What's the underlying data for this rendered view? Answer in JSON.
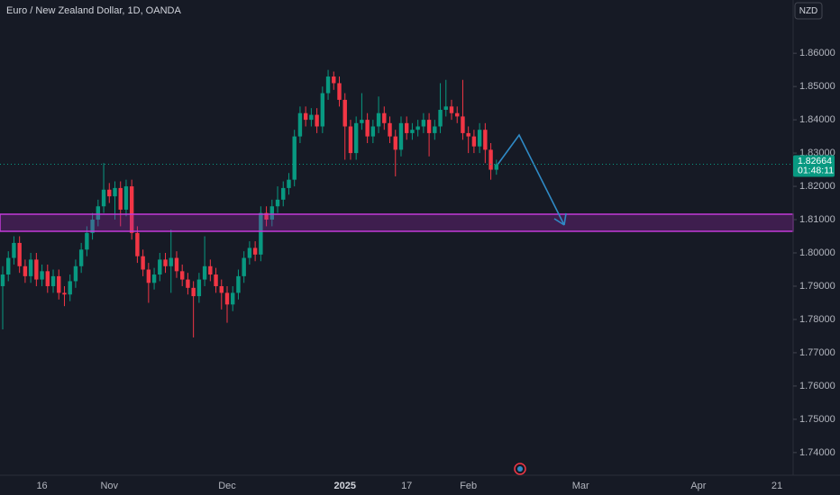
{
  "chart_data": {
    "type": "candlestick",
    "title": "Euro / New Zealand Dollar, 1D, OANDA",
    "currency": "NZD",
    "countdown": "01:48:11",
    "up_color": "#089981",
    "down_color": "#f23645",
    "grid": false,
    "ylim": [
      1.7332,
      1.876
    ],
    "yticks": [
      {
        "value": 1.74,
        "label": "1.74000"
      },
      {
        "value": 1.75,
        "label": "1.75000"
      },
      {
        "value": 1.76,
        "label": "1.76000"
      },
      {
        "value": 1.77,
        "label": "1.77000"
      },
      {
        "value": 1.78,
        "label": "1.78000"
      },
      {
        "value": 1.79,
        "label": "1.79000"
      },
      {
        "value": 1.8,
        "label": "1.80000"
      },
      {
        "value": 1.81,
        "label": "1.81000"
      },
      {
        "value": 1.82,
        "label": "1.82000"
      },
      {
        "value": 1.83,
        "label": "1.83000"
      },
      {
        "value": 1.84,
        "label": "1.84000"
      },
      {
        "value": 1.85,
        "label": "1.85000"
      },
      {
        "value": 1.86,
        "label": "1.86000"
      }
    ],
    "categories": [
      null,
      null,
      null,
      null,
      null,
      null,
      null,
      "16",
      null,
      null,
      null,
      null,
      null,
      null,
      null,
      null,
      null,
      null,
      null,
      "Nov",
      null,
      null,
      null,
      null,
      null,
      null,
      null,
      null,
      null,
      null,
      null,
      null,
      null,
      null,
      null,
      null,
      null,
      null,
      null,
      null,
      "Dec",
      null,
      null,
      null,
      null,
      null,
      null,
      null,
      null,
      null,
      null,
      null,
      null,
      null,
      null,
      null,
      null,
      null,
      null,
      null,
      null,
      "2025",
      null,
      null,
      null,
      null,
      null,
      null,
      null,
      null,
      null,
      null,
      "17",
      null,
      null,
      null,
      null,
      null,
      null,
      null,
      null,
      null,
      null,
      "Feb",
      null,
      null,
      null,
      null,
      null,
      null,
      null,
      null,
      null,
      null,
      null,
      null,
      null,
      null,
      null,
      null,
      null,
      null,
      null,
      "Mar",
      null,
      null,
      null,
      null,
      null,
      null,
      null,
      null,
      null,
      null,
      null,
      null,
      null,
      null,
      null,
      null,
      null,
      null,
      null,
      null,
      "Apr",
      null,
      null,
      null,
      null,
      null,
      null,
      null,
      null,
      null,
      null,
      null,
      null,
      null,
      "21",
      null,
      null
    ],
    "open": [
      1.79,
      1.7935,
      1.7985,
      1.803,
      1.796,
      1.793,
      1.798,
      1.792,
      1.7945,
      1.79,
      1.793,
      1.788,
      1.7875,
      1.7915,
      1.796,
      1.801,
      1.806,
      1.81,
      1.814,
      1.819,
      1.817,
      1.8195,
      1.813,
      1.82,
      1.806,
      1.799,
      1.795,
      1.791,
      1.7935,
      1.798,
      1.796,
      1.7985,
      1.7945,
      1.792,
      1.7895,
      1.787,
      1.792,
      1.796,
      1.7935,
      1.79,
      1.788,
      1.7845,
      1.788,
      1.793,
      1.7985,
      1.8015,
      1.7995,
      1.812,
      1.81,
      1.814,
      1.816,
      1.8195,
      1.822,
      1.835,
      1.842,
      1.84,
      1.8415,
      1.838,
      1.848,
      1.853,
      1.851,
      1.846,
      1.838,
      1.83,
      1.839,
      1.84,
      1.835,
      1.838,
      1.842,
      1.839,
      1.835,
      1.831,
      1.839,
      1.836,
      1.837,
      1.838,
      1.84,
      1.836,
      1.838,
      1.843,
      1.844,
      1.842,
      1.841,
      1.836,
      1.835,
      1.832,
      1.837,
      1.831,
      1.825,
      null,
      null,
      null,
      null,
      null,
      null,
      null,
      null,
      null,
      null,
      null,
      null,
      null,
      null,
      null,
      null,
      null,
      null,
      null,
      null,
      null,
      null,
      null,
      null,
      null,
      null,
      null,
      null,
      null,
      null,
      null,
      null,
      null,
      null,
      null,
      null,
      null,
      null,
      null,
      null,
      null,
      null,
      null,
      null,
      null,
      null,
      null,
      null,
      null,
      null,
      null,
      null
    ],
    "high": [
      1.796,
      1.8005,
      1.805,
      1.805,
      1.798,
      1.8,
      1.8,
      1.7965,
      1.7965,
      1.795,
      1.795,
      1.79,
      1.7935,
      1.798,
      1.803,
      1.808,
      1.812,
      1.816,
      1.827,
      1.821,
      1.8215,
      1.8215,
      1.822,
      1.822,
      1.808,
      1.801,
      1.797,
      1.7955,
      1.8,
      1.8,
      1.807,
      1.8005,
      1.7965,
      1.794,
      1.7915,
      1.794,
      1.805,
      1.798,
      1.7955,
      1.792,
      1.79,
      1.79,
      1.795,
      1.8005,
      1.8035,
      1.8035,
      1.814,
      1.814,
      1.816,
      1.82,
      1.8215,
      1.824,
      1.837,
      1.844,
      1.844,
      1.8435,
      1.8435,
      1.85,
      1.855,
      1.8545,
      1.853,
      1.848,
      1.84,
      1.841,
      1.848,
      1.842,
      1.84,
      1.847,
      1.844,
      1.841,
      1.837,
      1.841,
      1.841,
      1.839,
      1.84,
      1.842,
      1.842,
      1.84,
      1.851,
      1.852,
      1.846,
      1.844,
      1.852,
      1.838,
      1.837,
      1.839,
      1.839,
      1.833,
      1.828,
      null,
      null,
      null,
      null,
      null,
      null,
      null,
      null,
      null,
      null,
      null,
      null,
      null,
      null,
      null,
      null,
      null,
      null,
      null,
      null,
      null,
      null,
      null,
      null,
      null,
      null,
      null,
      null,
      null,
      null,
      null,
      null,
      null,
      null,
      null,
      null,
      null,
      null,
      null,
      null,
      null,
      null,
      null,
      null,
      null,
      null,
      null,
      null,
      null,
      null,
      null,
      null
    ],
    "low": [
      1.777,
      1.7915,
      1.7965,
      1.794,
      1.791,
      1.791,
      1.79,
      1.79,
      1.788,
      1.788,
      1.786,
      1.784,
      1.7855,
      1.7895,
      1.794,
      1.799,
      1.804,
      1.808,
      1.812,
      1.815,
      1.81,
      1.808,
      1.811,
      1.804,
      1.797,
      1.793,
      1.785,
      1.789,
      1.7915,
      1.794,
      1.788,
      1.7925,
      1.79,
      1.7875,
      1.7746,
      1.785,
      1.79,
      1.7915,
      1.788,
      1.783,
      1.779,
      1.7825,
      1.786,
      1.791,
      1.7965,
      1.7975,
      1.7975,
      1.808,
      1.808,
      1.812,
      1.814,
      1.8175,
      1.82,
      1.833,
      1.838,
      1.838,
      1.836,
      1.836,
      1.846,
      1.849,
      1.844,
      1.828,
      1.828,
      1.828,
      1.837,
      1.833,
      1.833,
      1.836,
      1.837,
      1.833,
      1.823,
      1.829,
      1.834,
      1.834,
      1.835,
      1.836,
      1.829,
      1.834,
      1.836,
      1.841,
      1.84,
      1.839,
      1.834,
      1.83,
      1.83,
      1.83,
      1.827,
      1.822,
      1.8235,
      null,
      null,
      null,
      null,
      null,
      null,
      null,
      null,
      null,
      null,
      null,
      null,
      null,
      null,
      null,
      null,
      null,
      null,
      null,
      null,
      null,
      null,
      null,
      null,
      null,
      null,
      null,
      null,
      null,
      null,
      null,
      null,
      null,
      null,
      null,
      null,
      null,
      null,
      null,
      null,
      null,
      null,
      null,
      null,
      null,
      null,
      null,
      null,
      null,
      null,
      null,
      null
    ],
    "close": [
      1.7935,
      1.7985,
      1.803,
      1.796,
      1.793,
      1.798,
      1.792,
      1.7945,
      1.79,
      1.793,
      1.788,
      1.7875,
      1.7915,
      1.796,
      1.801,
      1.806,
      1.81,
      1.814,
      1.819,
      1.817,
      1.8195,
      1.813,
      1.82,
      1.806,
      1.799,
      1.795,
      1.791,
      1.7935,
      1.798,
      1.796,
      1.7985,
      1.7945,
      1.792,
      1.7895,
      1.787,
      1.792,
      1.796,
      1.7935,
      1.79,
      1.788,
      1.7845,
      1.788,
      1.793,
      1.7985,
      1.8015,
      1.7995,
      1.812,
      1.81,
      1.814,
      1.816,
      1.8195,
      1.822,
      1.835,
      1.842,
      1.84,
      1.8415,
      1.838,
      1.848,
      1.853,
      1.851,
      1.846,
      1.838,
      1.83,
      1.839,
      1.84,
      1.835,
      1.838,
      1.842,
      1.839,
      1.835,
      1.831,
      1.839,
      1.836,
      1.837,
      1.838,
      1.84,
      1.836,
      1.838,
      1.843,
      1.844,
      1.842,
      1.841,
      1.836,
      1.835,
      1.832,
      1.837,
      1.831,
      1.825,
      1.82664,
      null,
      null,
      null,
      null,
      null,
      null,
      null,
      null,
      null,
      null,
      null,
      null,
      null,
      null,
      null,
      null,
      null,
      null,
      null,
      null,
      null,
      null,
      null,
      null,
      null,
      null,
      null,
      null,
      null,
      null,
      null,
      null,
      null,
      null,
      null,
      null,
      null,
      null,
      null,
      null,
      null,
      null,
      null,
      null,
      null,
      null,
      null,
      null,
      null,
      null,
      null,
      null
    ]
  }
}
